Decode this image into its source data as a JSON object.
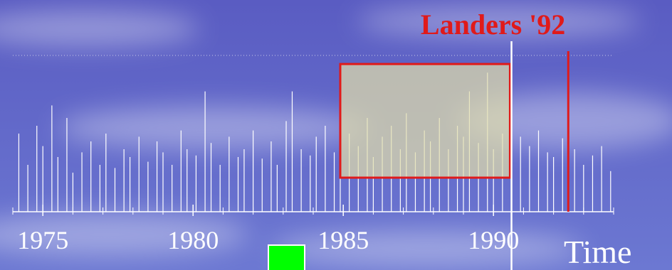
{
  "chart_data": {
    "type": "spike",
    "color": "#ffffff",
    "x": [
      1974.2,
      1974.5,
      1974.8,
      1975.0,
      1975.3,
      1975.5,
      1975.8,
      1976.0,
      1976.3,
      1976.6,
      1976.9,
      1977.1,
      1977.4,
      1977.7,
      1977.9,
      1978.2,
      1978.5,
      1978.8,
      1979.0,
      1979.3,
      1979.6,
      1979.8,
      1980.1,
      1980.4,
      1980.6,
      1980.9,
      1981.2,
      1981.5,
      1981.7,
      1982.0,
      1982.3,
      1982.6,
      1982.8,
      1983.1,
      1983.3,
      1983.6,
      1983.9,
      1984.1,
      1984.4,
      1984.7,
      1984.9,
      1985.2,
      1985.5,
      1985.8,
      1986.0,
      1986.3,
      1986.6,
      1986.9,
      1987.1,
      1987.4,
      1987.7,
      1987.9,
      1988.2,
      1988.5,
      1988.8,
      1989.0,
      1989.2,
      1989.5,
      1989.8,
      1990.0,
      1990.3,
      1990.6,
      1990.9,
      1991.2,
      1991.5,
      1991.8,
      1992.0,
      1992.3,
      1992.7,
      1993.0,
      1993.3,
      1993.6,
      1993.9
    ],
    "values": [
      50,
      30,
      55,
      42,
      68,
      35,
      60,
      25,
      38,
      45,
      30,
      50,
      28,
      40,
      35,
      48,
      32,
      45,
      38,
      30,
      52,
      40,
      36,
      77,
      44,
      30,
      48,
      35,
      40,
      52,
      34,
      45,
      30,
      58,
      77,
      40,
      36,
      48,
      55,
      38,
      45,
      50,
      42,
      60,
      35,
      48,
      55,
      40,
      63,
      38,
      52,
      45,
      60,
      40,
      55,
      48,
      77,
      44,
      89,
      40,
      50,
      45,
      48,
      42,
      52,
      38,
      35,
      47,
      40,
      30,
      36,
      42,
      26
    ],
    "xlim": [
      1974,
      1994
    ],
    "ylim": [
      0,
      100
    ],
    "xticks": [
      1975,
      1980,
      1985,
      1990
    ],
    "minor_xticks": [
      1974,
      1975,
      1976,
      1977,
      1978,
      1979,
      1980,
      1981,
      1982,
      1983,
      1984,
      1985,
      1986,
      1987,
      1988,
      1989,
      1990,
      1991,
      1992,
      1993,
      1994
    ],
    "x_label": "Time",
    "annotation": {
      "text": "Landers '92",
      "x": 1992.49,
      "color": "#e01a1a"
    },
    "highlight": {
      "x": [
        1984.9,
        1990.55
      ],
      "y": [
        21.8,
        94.5
      ]
    },
    "cursor_x": 1990.6
  }
}
